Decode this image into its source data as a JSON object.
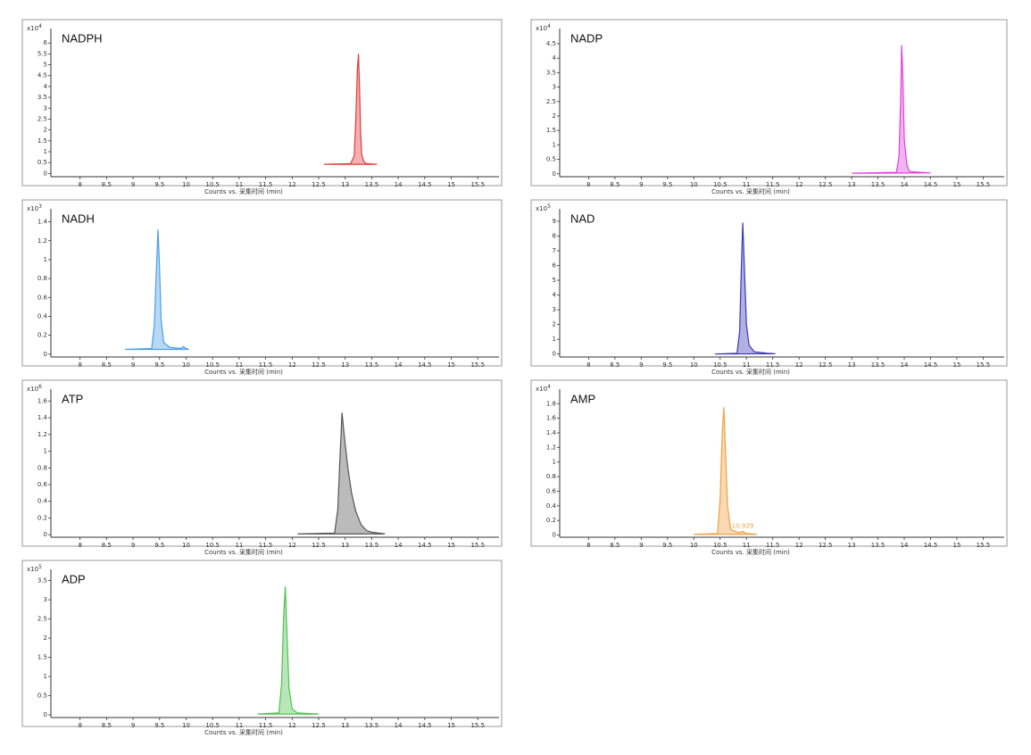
{
  "chart_data": [
    {
      "type": "area",
      "title": "NADPH",
      "y_multiplier": {
        "base": "x10",
        "exponent": "4"
      },
      "x_label": "Counts vs. 采集时间 (min)",
      "xlim": [
        7.45,
        15.9
      ],
      "xticks": [
        8,
        8.5,
        9,
        9.5,
        10,
        10.5,
        11,
        11.5,
        12,
        12.5,
        13,
        13.5,
        14,
        14.5,
        15,
        15.5
      ],
      "ylim": [
        -0.15,
        6.5
      ],
      "yticks": [
        0,
        0.5,
        1,
        1.5,
        2,
        2.5,
        3,
        3.5,
        4,
        4.5,
        5,
        5.5,
        6
      ],
      "x": [
        12.6,
        13.1,
        13.17,
        13.2,
        13.23,
        13.25,
        13.27,
        13.29,
        13.31,
        13.35,
        13.4,
        13.6
      ],
      "series": [
        {
          "color": "#e03a3a",
          "values": [
            0.42,
            0.45,
            0.8,
            2.5,
            4.8,
            5.5,
            4.0,
            2.0,
            0.9,
            0.55,
            0.45,
            0.42
          ]
        }
      ]
    },
    {
      "type": "area",
      "title": "NADP",
      "y_multiplier": {
        "base": "x10",
        "exponent": "4"
      },
      "x_label": "Counts vs. 采集时间 (min)",
      "xlim": [
        7.45,
        15.9
      ],
      "xticks": [
        8,
        8.5,
        9,
        9.5,
        10,
        10.5,
        11,
        11.5,
        12,
        12.5,
        13,
        13.5,
        14,
        14.5,
        15,
        15.5
      ],
      "ylim": [
        -0.1,
        4.9
      ],
      "yticks": [
        0,
        0.5,
        1,
        1.5,
        2,
        2.5,
        3,
        3.5,
        4,
        4.5
      ],
      "x": [
        13.0,
        13.85,
        13.9,
        13.93,
        13.95,
        13.97,
        14.0,
        14.05,
        14.1,
        14.5
      ],
      "series": [
        {
          "color": "#e040e0",
          "values": [
            0.02,
            0.05,
            0.6,
            2.5,
            4.45,
            3.6,
            1.2,
            0.3,
            0.08,
            0.03
          ]
        }
      ]
    },
    {
      "type": "area",
      "title": "NADH",
      "y_multiplier": {
        "base": "x10",
        "exponent": "3"
      },
      "x_label": "Counts vs. 采集时间 (min)",
      "xlim": [
        7.45,
        15.9
      ],
      "xticks": [
        8,
        8.5,
        9,
        9.5,
        10,
        10.5,
        11,
        11.5,
        12,
        12.5,
        13,
        13.5,
        14,
        14.5,
        15,
        15.5
      ],
      "ylim": [
        -0.03,
        1.5
      ],
      "yticks": [
        0,
        0.2,
        0.4,
        0.6,
        0.8,
        1,
        1.2,
        1.4
      ],
      "x": [
        8.85,
        9.35,
        9.4,
        9.44,
        9.47,
        9.5,
        9.53,
        9.58,
        9.7,
        9.9,
        9.95,
        10.0,
        10.05
      ],
      "series": [
        {
          "color": "#4a9fe8",
          "values": [
            0.05,
            0.06,
            0.3,
            0.9,
            1.32,
            0.9,
            0.35,
            0.12,
            0.07,
            0.06,
            0.08,
            0.06,
            0.05
          ]
        }
      ]
    },
    {
      "type": "area",
      "title": "NAD",
      "y_multiplier": {
        "base": "x10",
        "exponent": "5"
      },
      "x_label": "Counts vs. 采集时间 (min)",
      "xlim": [
        7.45,
        15.9
      ],
      "xticks": [
        8,
        8.5,
        9,
        9.5,
        10,
        10.5,
        11,
        11.5,
        12,
        12.5,
        13,
        13.5,
        14,
        14.5,
        15,
        15.5
      ],
      "ylim": [
        -0.2,
        9.6
      ],
      "yticks": [
        0,
        1,
        2,
        3,
        4,
        5,
        6,
        7,
        8,
        9
      ],
      "x": [
        10.4,
        10.82,
        10.87,
        10.9,
        10.93,
        10.96,
        11.0,
        11.05,
        11.15,
        11.4,
        11.55
      ],
      "series": [
        {
          "color": "#3a3ab8",
          "values": [
            0,
            0.05,
            1.5,
            5.5,
            8.9,
            6.0,
            2.0,
            0.6,
            0.15,
            0.05,
            0.02
          ]
        }
      ]
    },
    {
      "type": "area",
      "title": "ATP",
      "y_multiplier": {
        "base": "x10",
        "exponent": "6"
      },
      "x_label": "Counts vs. 采集时间 (min)",
      "xlim": [
        7.45,
        15.9
      ],
      "xticks": [
        8,
        8.5,
        9,
        9.5,
        10,
        10.5,
        11,
        11.5,
        12,
        12.5,
        13,
        13.5,
        14,
        14.5,
        15,
        15.5
      ],
      "ylim": [
        -0.03,
        1.7
      ],
      "yticks": [
        0,
        0.2,
        0.4,
        0.6,
        0.8,
        1,
        1.2,
        1.4,
        1.6
      ],
      "x": [
        12.1,
        12.8,
        12.86,
        12.9,
        12.94,
        12.98,
        13.05,
        13.12,
        13.2,
        13.3,
        13.4,
        13.5,
        13.75
      ],
      "series": [
        {
          "color": "#555555",
          "values": [
            0.01,
            0.02,
            0.3,
            0.9,
            1.46,
            1.2,
            0.8,
            0.5,
            0.28,
            0.12,
            0.05,
            0.03,
            0.01
          ]
        }
      ]
    },
    {
      "type": "area",
      "title": "AMP",
      "y_multiplier": {
        "base": "x10",
        "exponent": "4"
      },
      "x_label": "Counts vs. 采集时间 (min)",
      "xlim": [
        7.45,
        15.9
      ],
      "xticks": [
        8,
        8.5,
        9,
        9.5,
        10,
        10.5,
        11,
        11.5,
        12,
        12.5,
        13,
        13.5,
        14,
        14.5,
        15,
        15.5
      ],
      "ylim": [
        -0.03,
        1.95
      ],
      "yticks": [
        0,
        0.2,
        0.4,
        0.6,
        0.8,
        1,
        1.2,
        1.4,
        1.6,
        1.8
      ],
      "x": [
        10.0,
        10.45,
        10.5,
        10.54,
        10.57,
        10.6,
        10.64,
        10.7,
        10.85,
        10.93,
        11.0,
        11.2
      ],
      "series": [
        {
          "color": "#f0a040",
          "values": [
            0.01,
            0.02,
            0.5,
            1.4,
            1.75,
            1.2,
            0.4,
            0.08,
            0.03,
            0.05,
            0.02,
            0.01
          ]
        }
      ],
      "annotation": {
        "text": "10.929",
        "x": 10.929,
        "y": 0.05
      }
    },
    {
      "type": "area",
      "title": "ADP",
      "y_multiplier": {
        "base": "x10",
        "exponent": "5"
      },
      "x_label": "Counts vs. 采集时间 (min)",
      "xlim": [
        7.45,
        15.9
      ],
      "xticks": [
        8,
        8.5,
        9,
        9.5,
        10,
        10.5,
        11,
        11.5,
        12,
        12.5,
        13,
        13.5,
        14,
        14.5,
        15,
        15.5
      ],
      "ylim": [
        -0.07,
        3.7
      ],
      "yticks": [
        0,
        0.5,
        1,
        1.5,
        2,
        2.5,
        3,
        3.5
      ],
      "x": [
        11.35,
        11.75,
        11.8,
        11.84,
        11.87,
        11.9,
        11.94,
        12.0,
        12.1,
        12.5
      ],
      "series": [
        {
          "color": "#50c050",
          "values": [
            0.02,
            0.05,
            0.8,
            2.6,
            3.35,
            2.2,
            0.7,
            0.15,
            0.05,
            0.02
          ]
        }
      ]
    }
  ]
}
